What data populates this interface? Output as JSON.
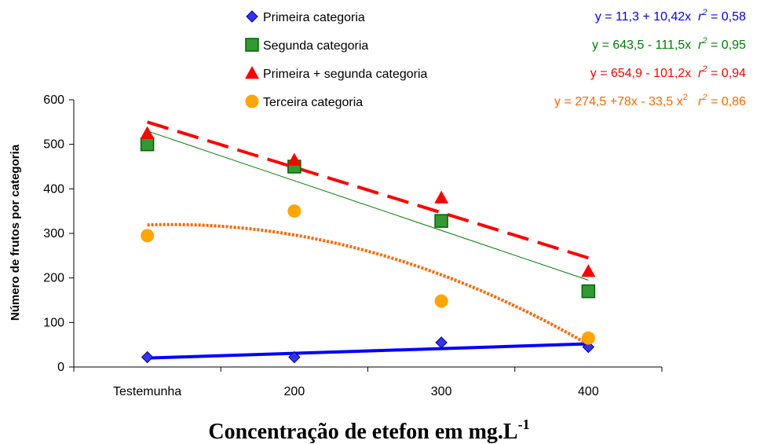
{
  "chart_data": {
    "type": "scatter",
    "categories": [
      "Testemunha",
      "200",
      "300",
      "400"
    ],
    "xlabel": "Concentração de etefon em mg.L",
    "xlabel_sup": "-1",
    "ylabel": "Número de frutos por categoria",
    "ylim": [
      0,
      600
    ],
    "yticks": [
      0,
      100,
      200,
      300,
      400,
      500,
      600
    ],
    "grid": false,
    "legend_position": "top-center",
    "series": [
      {
        "name": "Primeira categoria",
        "marker": "diamond",
        "color": "#3333FF",
        "values": [
          22,
          22,
          55,
          45
        ],
        "trend": {
          "type": "linear",
          "from": 20,
          "to": 52,
          "style": "solid"
        },
        "equation": {
          "text": "y = 11,3 + 10,42x",
          "r2_prefix": "r",
          "r2_sup": "2",
          "r2_value": " = 0,58",
          "color": "#0000FF"
        }
      },
      {
        "name": "Segunda categoria",
        "marker": "square",
        "color": "#339933",
        "values": [
          500,
          450,
          328,
          170
        ],
        "trend": {
          "type": "linear",
          "from": 530,
          "to": 195,
          "style": "thin"
        },
        "equation": {
          "text": "y = 643,5 - 111,5x",
          "r2_prefix": "r",
          "r2_sup": "2",
          "r2_value": " = 0,95",
          "color": "#008000"
        }
      },
      {
        "name": "Primeira + segunda categoria",
        "marker": "triangle",
        "color": "#FF0000",
        "values": [
          525,
          465,
          380,
          215
        ],
        "trend": {
          "type": "linear",
          "from": 550,
          "to": 245,
          "style": "dashed"
        },
        "equation": {
          "text": "y = 654,9 - 101,2x",
          "r2_prefix": "r",
          "r2_sup": "2",
          "r2_value": " = 0,94",
          "color": "#FF0000"
        }
      },
      {
        "name": "Terceira categoria",
        "marker": "circle",
        "color": "#FFA500",
        "values": [
          295,
          350,
          148,
          65
        ],
        "trend": {
          "type": "quadratic",
          "a": 274.5,
          "b": 78,
          "c": -33.5,
          "style": "dotted"
        },
        "equation": {
          "text": "y = 274,5 +78x - 33,5 x",
          "eq_sup": "2",
          "r2_prefix": "   r",
          "r2_sup": "2",
          "r2_value": " = 0,86",
          "color": "#FF6600"
        }
      }
    ]
  }
}
